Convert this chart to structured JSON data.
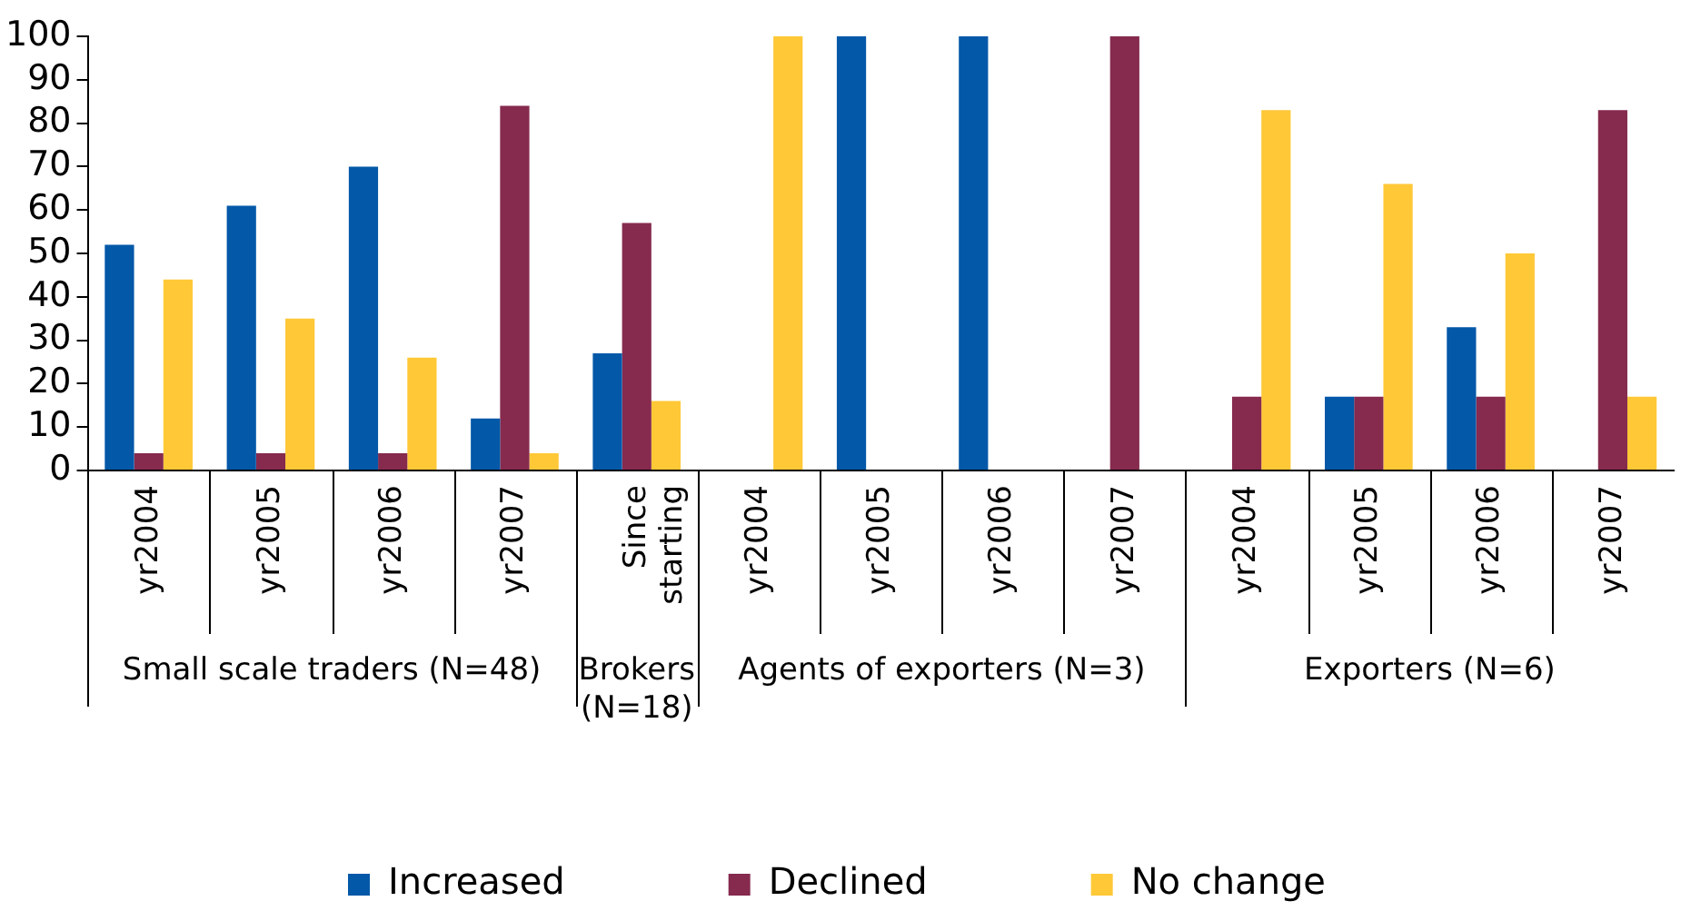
{
  "chart_data": {
    "type": "bar",
    "categories": [
      "yr2004",
      "yr2005",
      "yr2006",
      "yr2007",
      "Since starting",
      "yr2004",
      "yr2005",
      "yr2006",
      "yr2007",
      "yr2004",
      "yr2005",
      "yr2006",
      "yr2007"
    ],
    "series": [
      {
        "name": "Increased",
        "color": "#0358a8",
        "values": [
          52,
          61,
          70,
          12,
          27,
          0,
          100,
          100,
          0,
          0,
          17,
          33,
          0
        ]
      },
      {
        "name": "Declined",
        "color": "#862a4e",
        "values": [
          4,
          4,
          4,
          84,
          57,
          0,
          0,
          0,
          100,
          17,
          17,
          17,
          83
        ]
      },
      {
        "name": "No change",
        "color": "#ffc837",
        "values": [
          44,
          35,
          26,
          4,
          16,
          100,
          0,
          0,
          0,
          83,
          66,
          50,
          17
        ]
      }
    ],
    "ylim": [
      0,
      100
    ],
    "yticks": [
      0,
      10,
      20,
      30,
      40,
      50,
      60,
      70,
      80,
      90,
      100
    ],
    "annotations": [
      "Small scale traders (N=48)",
      "Brokers (N=18)",
      "Agents of exporters (N=3)",
      "Exporters (N=6)"
    ],
    "grid": false,
    "legend": "bottom"
  }
}
